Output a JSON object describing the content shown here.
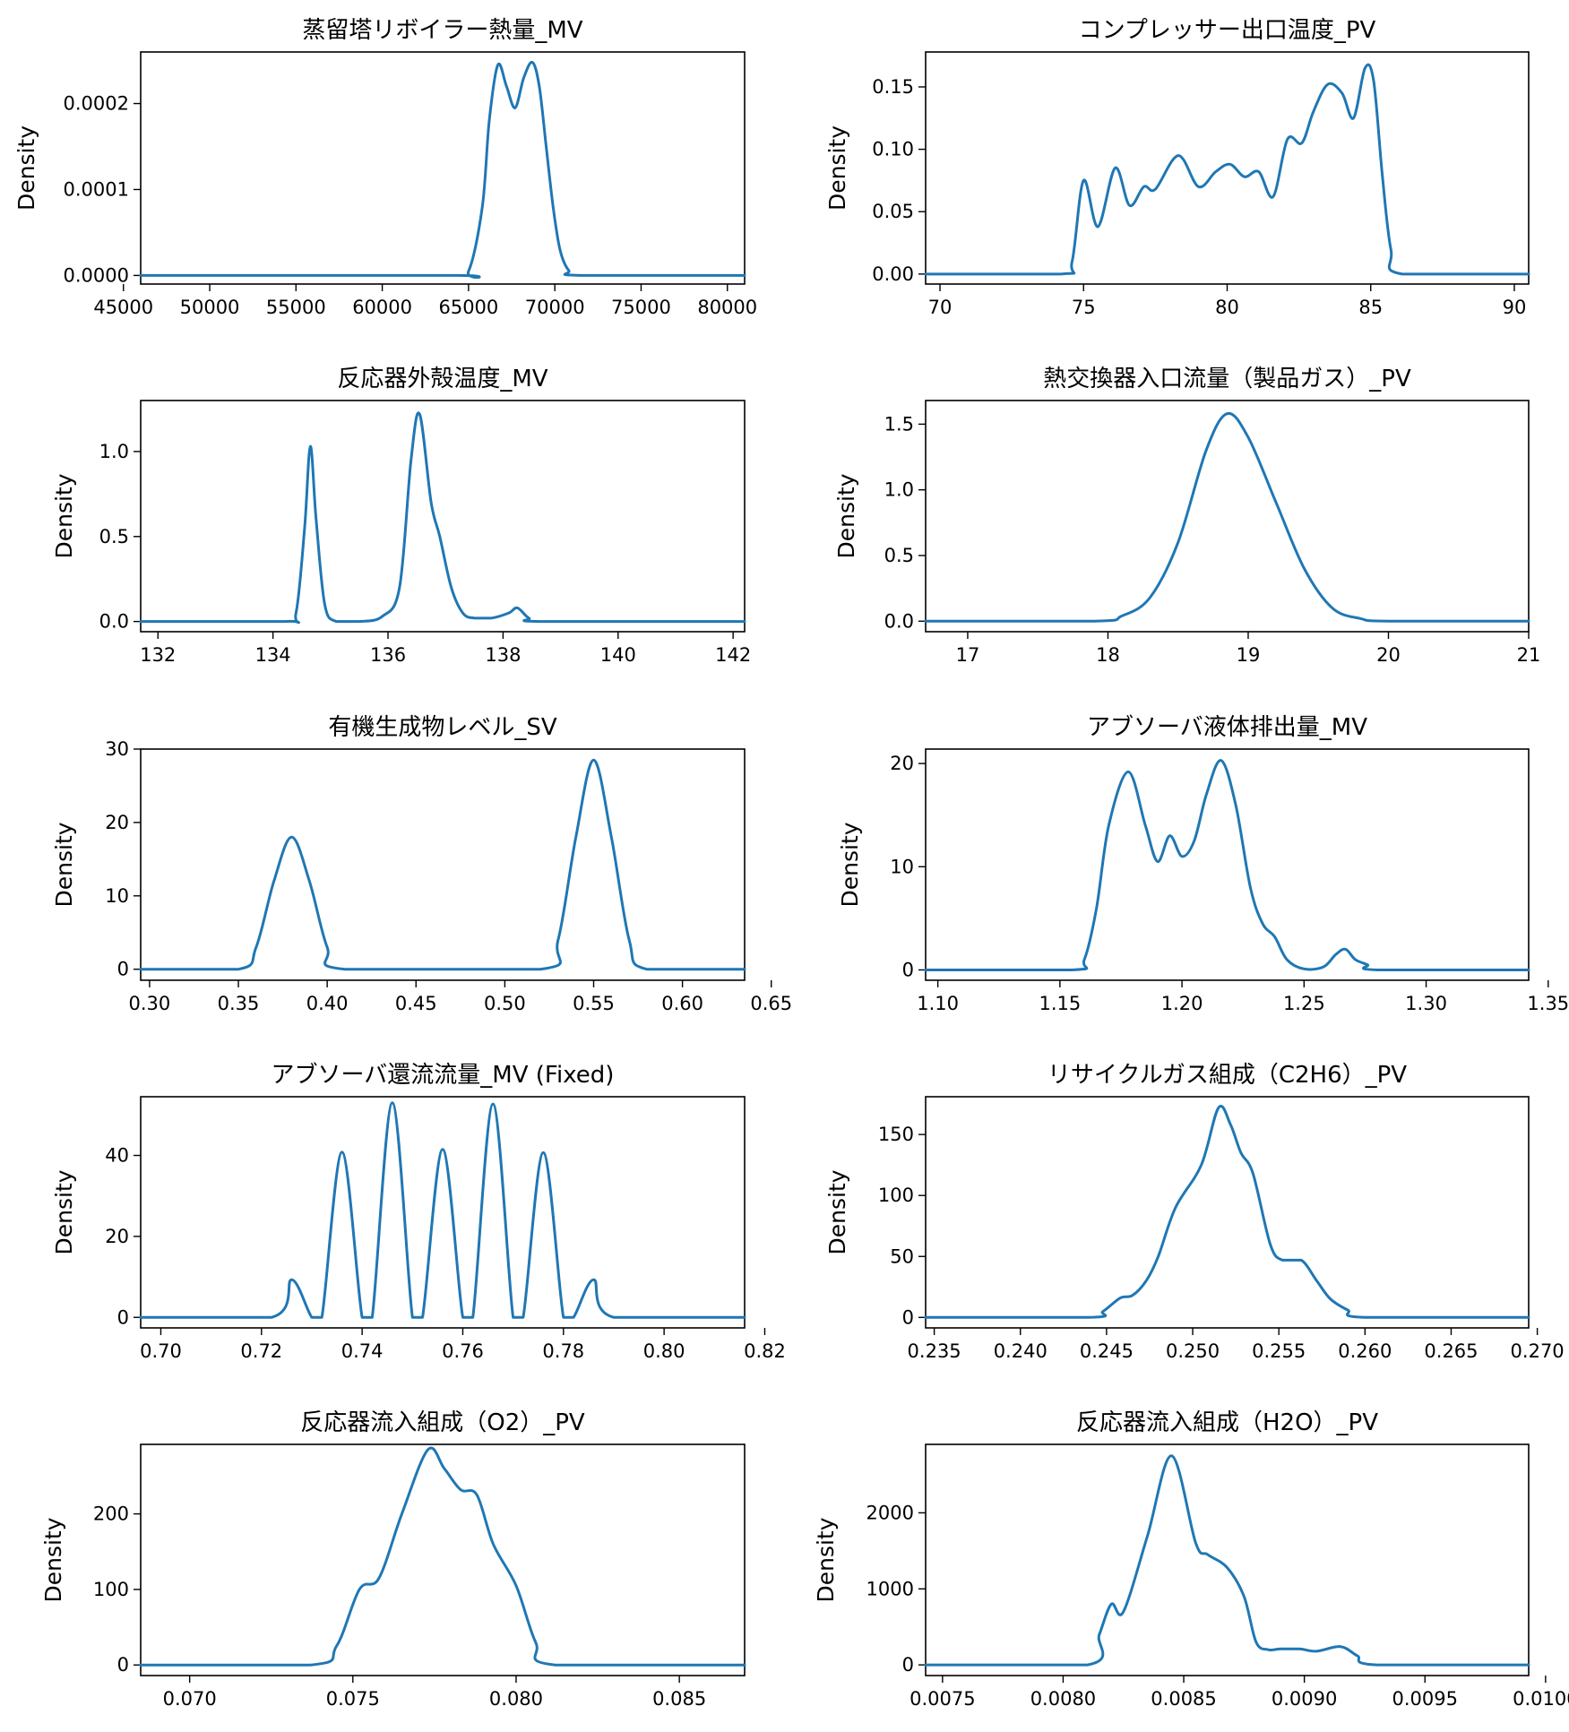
{
  "chart_data": [
    {
      "type": "line",
      "title": "蒸留塔リボイラー熱量_MV",
      "xlabel": "",
      "ylabel": "Density",
      "color": "#1f77b4",
      "xlim": [
        46000,
        81000
      ],
      "ylim": [
        -1e-05,
        0.00026
      ],
      "xticks": [
        "45000",
        "50000",
        "55000",
        "60000",
        "65000",
        "70000",
        "75000",
        "80000"
      ],
      "xtick_values": [
        45000,
        50000,
        55000,
        60000,
        65000,
        70000,
        75000,
        80000
      ],
      "yticks": [
        "0.0000",
        "0.0001",
        "0.0002"
      ],
      "ytick_values": [
        0,
        0.0001,
        0.0002
      ],
      "x": [
        46000,
        64000,
        65000,
        65800,
        66200,
        66700,
        67200,
        67700,
        68200,
        68700,
        69100,
        69500,
        69900,
        70300,
        70800,
        71500,
        81000
      ],
      "y": [
        0,
        0,
        5e-06,
        8e-05,
        0.00018,
        0.000245,
        0.00022,
        0.000195,
        0.00023,
        0.000248,
        0.00022,
        0.00015,
        8e-05,
        3e-05,
        6e-06,
        0,
        0
      ]
    },
    {
      "type": "line",
      "title": "コンプレッサー出口温度_PV",
      "xlabel": "",
      "ylabel": "Density",
      "color": "#1f77b4",
      "xlim": [
        69.5,
        90.5
      ],
      "ylim": [
        -0.008,
        0.178
      ],
      "xticks": [
        "70",
        "75",
        "80",
        "85",
        "90"
      ],
      "xtick_values": [
        70,
        75,
        80,
        85,
        90
      ],
      "yticks": [
        "0.00",
        "0.05",
        "0.10",
        "0.15"
      ],
      "ytick_values": [
        0,
        0.05,
        0.1,
        0.15
      ],
      "x": [
        69.5,
        74.2,
        74.6,
        75.0,
        75.5,
        76.1,
        76.6,
        77.1,
        77.5,
        78.3,
        79.0,
        79.6,
        80.1,
        80.6,
        81.1,
        81.6,
        82.1,
        82.6,
        83.0,
        83.5,
        84.0,
        84.4,
        84.8,
        85.1,
        85.4,
        85.7,
        86.1,
        90.5
      ],
      "y": [
        0,
        0,
        0.01,
        0.075,
        0.038,
        0.085,
        0.055,
        0.07,
        0.068,
        0.095,
        0.07,
        0.082,
        0.088,
        0.078,
        0.082,
        0.062,
        0.108,
        0.105,
        0.13,
        0.152,
        0.145,
        0.125,
        0.165,
        0.155,
        0.08,
        0.02,
        0,
        0
      ]
    },
    {
      "type": "line",
      "title": "反応器外殻温度_MV",
      "xlabel": "",
      "ylabel": "Density",
      "color": "#1f77b4",
      "xlim": [
        131.7,
        142.2
      ],
      "ylim": [
        -0.06,
        1.3
      ],
      "xticks": [
        "132",
        "134",
        "136",
        "138",
        "140",
        "142"
      ],
      "xtick_values": [
        132,
        134,
        136,
        138,
        140,
        142
      ],
      "yticks": [
        "0.0",
        "0.5",
        "1.0"
      ],
      "ytick_values": [
        0,
        0.5,
        1.0
      ],
      "x": [
        131.7,
        134.2,
        134.4,
        134.55,
        134.65,
        134.75,
        134.9,
        135.1,
        135.5,
        135.9,
        136.2,
        136.4,
        136.55,
        136.75,
        136.9,
        137.1,
        137.3,
        137.5,
        137.8,
        138.1,
        138.25,
        138.45,
        138.7,
        142.2
      ],
      "y": [
        0,
        0,
        0.05,
        0.55,
        1.03,
        0.6,
        0.1,
        0,
        0,
        0.03,
        0.2,
        0.95,
        1.22,
        0.7,
        0.5,
        0.2,
        0.05,
        0.02,
        0.02,
        0.05,
        0.08,
        0.02,
        0,
        0
      ]
    },
    {
      "type": "line",
      "title": "熱交換器入口流量（製品ガス）_PV",
      "xlabel": "",
      "ylabel": "Density",
      "color": "#1f77b4",
      "xlim": [
        16.7,
        21.0
      ],
      "ylim": [
        -0.08,
        1.68
      ],
      "xticks": [
        "17",
        "18",
        "19",
        "20",
        "21"
      ],
      "xtick_values": [
        17,
        18,
        19,
        20,
        21
      ],
      "yticks": [
        "0.0",
        "0.5",
        "1.0",
        "1.5"
      ],
      "ytick_values": [
        0,
        0.5,
        1.0,
        1.5
      ],
      "x": [
        16.7,
        17.9,
        18.1,
        18.3,
        18.5,
        18.7,
        18.85,
        19.0,
        19.2,
        19.4,
        19.6,
        19.8,
        20.0,
        21.0
      ],
      "y": [
        0,
        0,
        0.04,
        0.18,
        0.6,
        1.3,
        1.58,
        1.4,
        0.9,
        0.4,
        0.1,
        0.02,
        0,
        0
      ]
    },
    {
      "type": "line",
      "title": "有機生成物レベル_SV",
      "xlabel": "",
      "ylabel": "Density",
      "color": "#1f77b4",
      "xlim": [
        0.295,
        0.635
      ],
      "ylim": [
        -1.5,
        30
      ],
      "xticks": [
        "0.30",
        "0.35",
        "0.40",
        "0.45",
        "0.50",
        "0.55",
        "0.60",
        "0.65"
      ],
      "xtick_values": [
        0.3,
        0.35,
        0.4,
        0.45,
        0.5,
        0.55,
        0.6,
        0.65
      ],
      "yticks": [
        "0",
        "10",
        "20",
        "30"
      ],
      "ytick_values": [
        0,
        10,
        20,
        30
      ],
      "x": [
        0.295,
        0.35,
        0.36,
        0.37,
        0.38,
        0.39,
        0.4,
        0.41,
        0.52,
        0.53,
        0.54,
        0.55,
        0.56,
        0.57,
        0.58,
        0.635
      ],
      "y": [
        0,
        0,
        3,
        12,
        18,
        12,
        3,
        0,
        0,
        4,
        18,
        28.5,
        18,
        4,
        0,
        0
      ]
    },
    {
      "type": "line",
      "title": "アブソーバ液体排出量_MV",
      "xlabel": "",
      "ylabel": "Density",
      "color": "#1f77b4",
      "xlim": [
        1.095,
        1.342
      ],
      "ylim": [
        -1,
        21.4
      ],
      "xticks": [
        "1.10",
        "1.15",
        "1.20",
        "1.25",
        "1.30",
        "1.35"
      ],
      "xtick_values": [
        1.1,
        1.15,
        1.2,
        1.25,
        1.3,
        1.35
      ],
      "yticks": [
        "0",
        "10",
        "20"
      ],
      "ytick_values": [
        0,
        10,
        20
      ],
      "x": [
        1.095,
        1.155,
        1.16,
        1.165,
        1.17,
        1.178,
        1.185,
        1.19,
        1.195,
        1.2,
        1.205,
        1.21,
        1.216,
        1.222,
        1.228,
        1.233,
        1.238,
        1.243,
        1.25,
        1.258,
        1.263,
        1.267,
        1.271,
        1.276,
        1.28,
        1.342
      ],
      "y": [
        0,
        0,
        1,
        6,
        14,
        19.2,
        14,
        10.5,
        13,
        11,
        12.5,
        17,
        20.3,
        16,
        8,
        4.5,
        3.2,
        1,
        0.1,
        0.3,
        1.5,
        2,
        1,
        0.5,
        0,
        0
      ]
    },
    {
      "type": "line",
      "title": "アブソーバ還流流量_MV (Fixed)",
      "xlabel": "",
      "ylabel": "Density",
      "color": "#1f77b4",
      "xlim": [
        0.696,
        0.816
      ],
      "ylim": [
        -2.6,
        54.5
      ],
      "xticks": [
        "0.70",
        "0.72",
        "0.74",
        "0.76",
        "0.78",
        "0.80",
        "0.82"
      ],
      "xtick_values": [
        0.7,
        0.72,
        0.74,
        0.76,
        0.78,
        0.8,
        0.82
      ],
      "yticks": [
        "0",
        "20",
        "40"
      ],
      "ytick_values": [
        0,
        20,
        40
      ],
      "x": [
        0.696,
        0.722,
        0.726,
        0.73,
        0.732,
        0.736,
        0.74,
        0.742,
        0.746,
        0.75,
        0.752,
        0.756,
        0.76,
        0.762,
        0.766,
        0.77,
        0.772,
        0.776,
        0.78,
        0.782,
        0.786,
        0.79,
        0.816
      ],
      "y": [
        0,
        0,
        9.3,
        0,
        0,
        40.8,
        0,
        0,
        53,
        0,
        0,
        41.5,
        0,
        0,
        52.7,
        0,
        0,
        40.7,
        0,
        0,
        9.3,
        0,
        0
      ]
    },
    {
      "type": "line",
      "title": "リサイクルガス組成（C2H6）_PV",
      "xlabel": "",
      "ylabel": "Density",
      "color": "#1f77b4",
      "xlim": [
        0.2345,
        0.2695
      ],
      "ylim": [
        -8.6,
        181
      ],
      "xticks": [
        "0.235",
        "0.240",
        "0.245",
        "0.250",
        "0.255",
        "0.260",
        "0.265",
        "0.270"
      ],
      "xtick_values": [
        0.235,
        0.24,
        0.245,
        0.25,
        0.255,
        0.26,
        0.265,
        0.27
      ],
      "yticks": [
        "0",
        "50",
        "100",
        "150"
      ],
      "ytick_values": [
        0,
        50,
        100,
        150
      ],
      "x": [
        0.2345,
        0.244,
        0.2448,
        0.2458,
        0.2465,
        0.2473,
        0.248,
        0.249,
        0.2505,
        0.2515,
        0.2522,
        0.2528,
        0.2535,
        0.2545,
        0.2552,
        0.2563,
        0.2572,
        0.258,
        0.259,
        0.26,
        0.2695
      ],
      "y": [
        0,
        0,
        5,
        16,
        18,
        30,
        50,
        90,
        125,
        172,
        158,
        135,
        118,
        60,
        47,
        47,
        30,
        15,
        6,
        0,
        0
      ]
    },
    {
      "type": "line",
      "title": "反応器流入組成（O2）_PV",
      "xlabel": "",
      "ylabel": "Density",
      "color": "#1f77b4",
      "xlim": [
        0.0685,
        0.087
      ],
      "ylim": [
        -14,
        292
      ],
      "xticks": [
        "0.070",
        "0.075",
        "0.080",
        "0.085"
      ],
      "xtick_values": [
        0.07,
        0.075,
        0.08,
        0.085
      ],
      "yticks": [
        "0",
        "100",
        "200"
      ],
      "ytick_values": [
        0,
        100,
        200
      ],
      "x": [
        0.0685,
        0.0737,
        0.0745,
        0.0752,
        0.0758,
        0.0765,
        0.0773,
        0.0778,
        0.0783,
        0.0788,
        0.0793,
        0.08,
        0.0806,
        0.0812,
        0.087
      ],
      "y": [
        0,
        0,
        25,
        100,
        115,
        200,
        285,
        260,
        232,
        225,
        160,
        105,
        30,
        0,
        0
      ]
    },
    {
      "type": "line",
      "title": "反応器流入組成（H2O）_PV",
      "xlabel": "",
      "ylabel": "Density",
      "color": "#1f77b4",
      "xlim": [
        0.00743,
        0.00993
      ],
      "ylim": [
        -140,
        2900
      ],
      "xticks": [
        "0.0075",
        "0.0080",
        "0.0085",
        "0.0090",
        "0.0095",
        "0.0100"
      ],
      "xtick_values": [
        0.0075,
        0.008,
        0.0085,
        0.009,
        0.0095,
        0.01
      ],
      "yticks": [
        "0",
        "1000",
        "2000"
      ],
      "ytick_values": [
        0,
        1000,
        2000
      ],
      "x": [
        0.00743,
        0.0081,
        0.00815,
        0.0082,
        0.00825,
        0.00835,
        0.00845,
        0.00855,
        0.0086,
        0.00868,
        0.00875,
        0.0088,
        0.00885,
        0.0089,
        0.00898,
        0.00905,
        0.00915,
        0.00922,
        0.0093,
        0.00993
      ],
      "y": [
        0,
        0,
        400,
        800,
        700,
        1700,
        2750,
        1600,
        1450,
        1280,
        900,
        300,
        200,
        210,
        210,
        180,
        240,
        120,
        0,
        0
      ]
    }
  ]
}
